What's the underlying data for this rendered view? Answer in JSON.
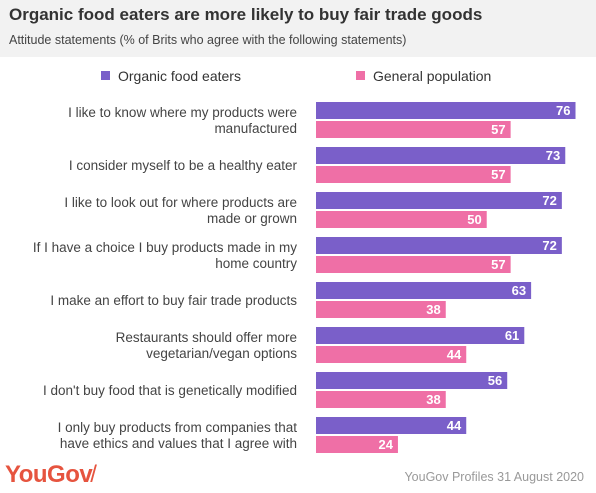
{
  "colors": {
    "organic": "#7a5fc9",
    "general": "#ef6fa6",
    "header_bg": "#f2f2f2",
    "logo": "#e6543f"
  },
  "brand": {
    "logo_text": "YouGov",
    "logo_mark": "/"
  },
  "source": "YouGov Profiles 31 August 2020",
  "chart_data": {
    "type": "bar",
    "orientation": "horizontal",
    "title": "Organic food eaters are more likely to buy fair trade goods",
    "subtitle": "Attitude statements (% of Brits who agree with the following statements)",
    "legend_position": "top",
    "grid": false,
    "xlim": [
      0,
      82
    ],
    "categories": [
      [
        "I like to know where my products were",
        "manufactured"
      ],
      [
        "I consider myself to be a healthy eater"
      ],
      [
        "I like to look out for where products are",
        "made or grown"
      ],
      [
        "If I have a choice I buy products made in my",
        "home country"
      ],
      [
        "I make an effort to buy fair trade products"
      ],
      [
        "Restaurants should offer more",
        "vegetarian/vegan options"
      ],
      [
        "I don't buy food that is genetically modified"
      ],
      [
        "I only buy products from companies that",
        "have ethics and values that I agree with"
      ]
    ],
    "series": [
      {
        "name": "Organic food eaters",
        "color": "#7a5fc9",
        "values": [
          76,
          73,
          72,
          72,
          63,
          61,
          56,
          44
        ]
      },
      {
        "name": "General population",
        "color": "#ef6fa6",
        "values": [
          57,
          57,
          50,
          57,
          38,
          44,
          38,
          24
        ]
      }
    ]
  }
}
